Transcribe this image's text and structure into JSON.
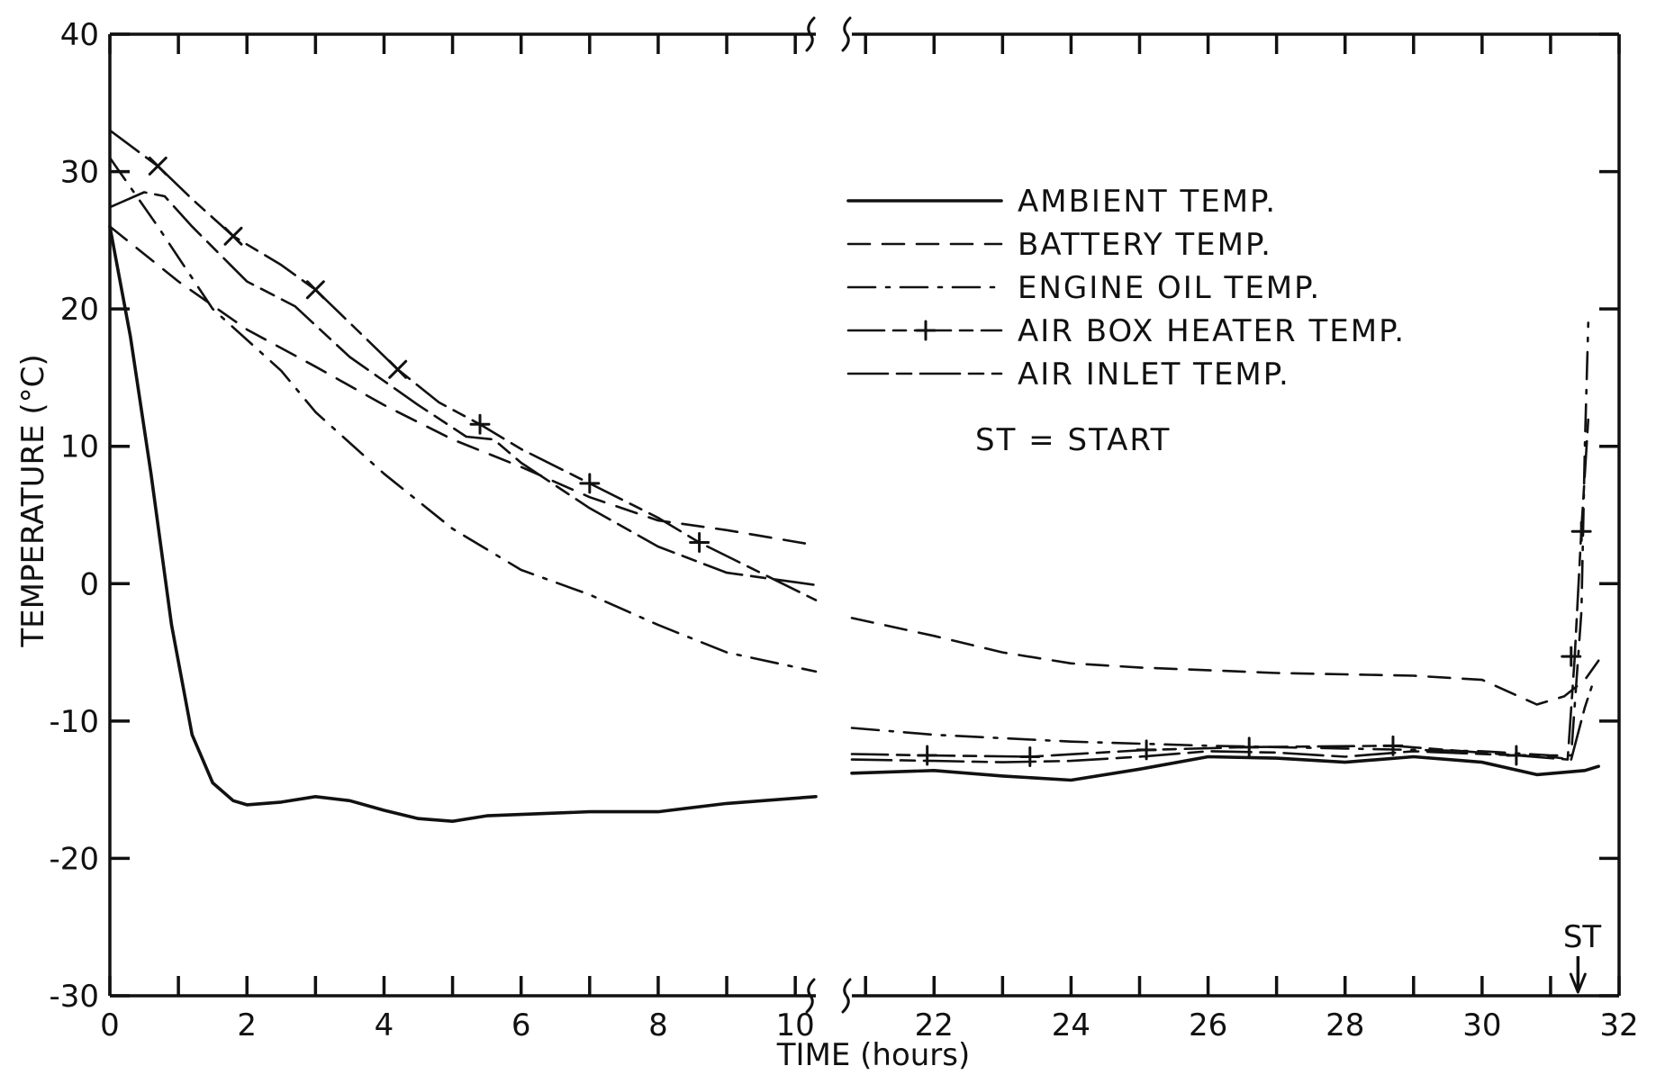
{
  "chart_data": {
    "type": "line",
    "xlabel": "TIME  (hours)",
    "ylabel": "TEMPERATURE  (°C)",
    "ylim": [
      -30,
      40
    ],
    "y_ticks": [
      40,
      30,
      20,
      10,
      0,
      -10,
      -20,
      -30
    ],
    "y_tick_labels": [
      "40",
      "30",
      "20",
      "10",
      "0",
      "-10",
      "-20",
      "-30"
    ],
    "x_segments": [
      {
        "range": [
          0,
          10.3
        ],
        "ticks": [
          0,
          2,
          4,
          6,
          8,
          10
        ],
        "tick_labels": [
          "0",
          "2",
          "4",
          "6",
          "8",
          "10"
        ]
      },
      {
        "range": [
          20.8,
          32
        ],
        "ticks": [
          22,
          24,
          26,
          28,
          30,
          32
        ],
        "tick_labels": [
          "22",
          "24",
          "26",
          "28",
          "30",
          "32"
        ]
      }
    ],
    "axis_break": true,
    "grid": false,
    "legend_position": "top-right",
    "annotation": {
      "text": "ST",
      "x": 31.4,
      "note": "ST = START"
    },
    "series": [
      {
        "name": "AMBIENT  TEMP.",
        "style": "solid",
        "points": [
          [
            0,
            26
          ],
          [
            0.3,
            18
          ],
          [
            0.6,
            8
          ],
          [
            0.9,
            -3
          ],
          [
            1.2,
            -11
          ],
          [
            1.5,
            -14.5
          ],
          [
            1.8,
            -15.8
          ],
          [
            2,
            -16.1
          ],
          [
            2.5,
            -15.9
          ],
          [
            3,
            -15.5
          ],
          [
            3.5,
            -15.8
          ],
          [
            4,
            -16.5
          ],
          [
            4.5,
            -17.1
          ],
          [
            5,
            -17.3
          ],
          [
            5.5,
            -16.9
          ],
          [
            6,
            -16.8
          ],
          [
            7,
            -16.6
          ],
          [
            8,
            -16.6
          ],
          [
            9,
            -16
          ],
          [
            10.3,
            -15.5
          ],
          [
            20.8,
            -13.8
          ],
          [
            22,
            -13.6
          ],
          [
            23,
            -14
          ],
          [
            24,
            -14.3
          ],
          [
            25,
            -13.5
          ],
          [
            26,
            -12.6
          ],
          [
            27,
            -12.7
          ],
          [
            28,
            -13
          ],
          [
            29,
            -12.6
          ],
          [
            30,
            -13
          ],
          [
            30.8,
            -13.9
          ],
          [
            31.5,
            -13.6
          ],
          [
            31.7,
            -13.3
          ]
        ]
      },
      {
        "name": "BATTERY  TEMP.",
        "style": "dashed",
        "points": [
          [
            0,
            26
          ],
          [
            1,
            22
          ],
          [
            2,
            18.5
          ],
          [
            3,
            15.8
          ],
          [
            4,
            13
          ],
          [
            5,
            10.5
          ],
          [
            6,
            8.5
          ],
          [
            7,
            6.3
          ],
          [
            8,
            4.6
          ],
          [
            9,
            3.9
          ],
          [
            10.3,
            2.8
          ],
          [
            20.8,
            -2.5
          ],
          [
            22,
            -3.8
          ],
          [
            23,
            -5
          ],
          [
            24,
            -5.8
          ],
          [
            25,
            -6.1
          ],
          [
            26,
            -6.3
          ],
          [
            27,
            -6.5
          ],
          [
            28,
            -6.6
          ],
          [
            29,
            -6.7
          ],
          [
            30,
            -7
          ],
          [
            30.8,
            -8.8
          ],
          [
            31.2,
            -8.2
          ],
          [
            31.5,
            -7
          ],
          [
            31.7,
            -5.6
          ]
        ]
      },
      {
        "name": "ENGINE  OIL  TEMP.",
        "style": "dashdot",
        "points": [
          [
            0,
            31
          ],
          [
            0.7,
            26
          ],
          [
            1.5,
            20
          ],
          [
            2.5,
            15.5
          ],
          [
            3,
            12.5
          ],
          [
            4,
            8
          ],
          [
            5,
            4
          ],
          [
            6,
            1
          ],
          [
            7,
            -0.8
          ],
          [
            8,
            -3
          ],
          [
            9,
            -5
          ],
          [
            10.3,
            -6.4
          ],
          [
            20.8,
            -10.5
          ],
          [
            22,
            -11
          ],
          [
            24,
            -11.5
          ],
          [
            26,
            -11.8
          ],
          [
            28,
            -12
          ],
          [
            30,
            -12.2
          ],
          [
            31,
            -12.5
          ],
          [
            31.3,
            -12.5
          ],
          [
            31.45,
            -2
          ],
          [
            31.5,
            10
          ],
          [
            31.55,
            19
          ]
        ]
      },
      {
        "name": "AIR  BOX  HEATER  TEMP.",
        "style": "plus-marked",
        "points": [
          [
            0,
            33
          ],
          [
            0.7,
            30.4
          ],
          [
            1.2,
            28
          ],
          [
            1.8,
            25.3
          ],
          [
            2.5,
            23.2
          ],
          [
            3,
            21.4
          ],
          [
            3.6,
            18.5
          ],
          [
            4.2,
            15.6
          ],
          [
            4.8,
            13.2
          ],
          [
            5.4,
            11.6
          ],
          [
            6,
            9.8
          ],
          [
            7,
            7.3
          ],
          [
            8,
            4.8
          ],
          [
            8.6,
            3
          ],
          [
            10.3,
            -1.2
          ],
          [
            20.8,
            -12.4
          ],
          [
            21.9,
            -12.5
          ],
          [
            23.4,
            -12.6
          ],
          [
            25.1,
            -12.1
          ],
          [
            26.6,
            -11.9
          ],
          [
            28.7,
            -11.8
          ],
          [
            30.5,
            -12.5
          ],
          [
            31.25,
            -12.8
          ],
          [
            31.35,
            -5.5
          ],
          [
            31.45,
            4
          ],
          [
            31.55,
            12
          ]
        ],
        "markers": [
          [
            0.7,
            30.4
          ],
          [
            1.8,
            25.3
          ],
          [
            3,
            21.4
          ],
          [
            4.2,
            15.6
          ],
          [
            5.4,
            11.6
          ],
          [
            7,
            7.3
          ],
          [
            8.6,
            3
          ],
          [
            21.9,
            -12.5
          ],
          [
            23.4,
            -12.6
          ],
          [
            25.1,
            -12.1
          ],
          [
            26.6,
            -11.9
          ],
          [
            28.7,
            -11.8
          ],
          [
            30.5,
            -12.5
          ],
          [
            31.3,
            -5.3
          ],
          [
            31.45,
            3.8
          ]
        ]
      },
      {
        "name": "AIR  INLET  TEMP.",
        "style": "longdash",
        "points": [
          [
            0,
            27.4
          ],
          [
            0.5,
            28.5
          ],
          [
            0.8,
            28.2
          ],
          [
            1.2,
            26
          ],
          [
            2,
            22
          ],
          [
            2.7,
            20.2
          ],
          [
            3.5,
            16.5
          ],
          [
            4.5,
            13
          ],
          [
            5.2,
            10.7
          ],
          [
            5.6,
            10.5
          ],
          [
            6,
            8.8
          ],
          [
            7,
            5.5
          ],
          [
            8,
            2.7
          ],
          [
            9,
            0.8
          ],
          [
            10.3,
            -0.1
          ],
          [
            20.8,
            -12.8
          ],
          [
            22,
            -12.9
          ],
          [
            23,
            -13
          ],
          [
            24,
            -12.9
          ],
          [
            25,
            -12.6
          ],
          [
            26,
            -12.2
          ],
          [
            27,
            -12.3
          ],
          [
            28,
            -12.6
          ],
          [
            29,
            -12.2
          ],
          [
            30,
            -12.4
          ],
          [
            31,
            -12.6
          ],
          [
            31.3,
            -12.8
          ],
          [
            31.5,
            -9
          ],
          [
            31.6,
            -7.5
          ]
        ]
      }
    ]
  },
  "legend": {
    "items": [
      {
        "label": "AMBIENT  TEMP.",
        "style": "solid"
      },
      {
        "label": "BATTERY  TEMP.",
        "style": "dashed"
      },
      {
        "label": "ENGINE  OIL  TEMP.",
        "style": "dashdot"
      },
      {
        "label": "AIR  BOX  HEATER  TEMP.",
        "style": "plus-marked"
      },
      {
        "label": "AIR  INLET  TEMP.",
        "style": "longdash"
      }
    ],
    "note": "ST  =  START"
  },
  "annotation_label": "ST"
}
